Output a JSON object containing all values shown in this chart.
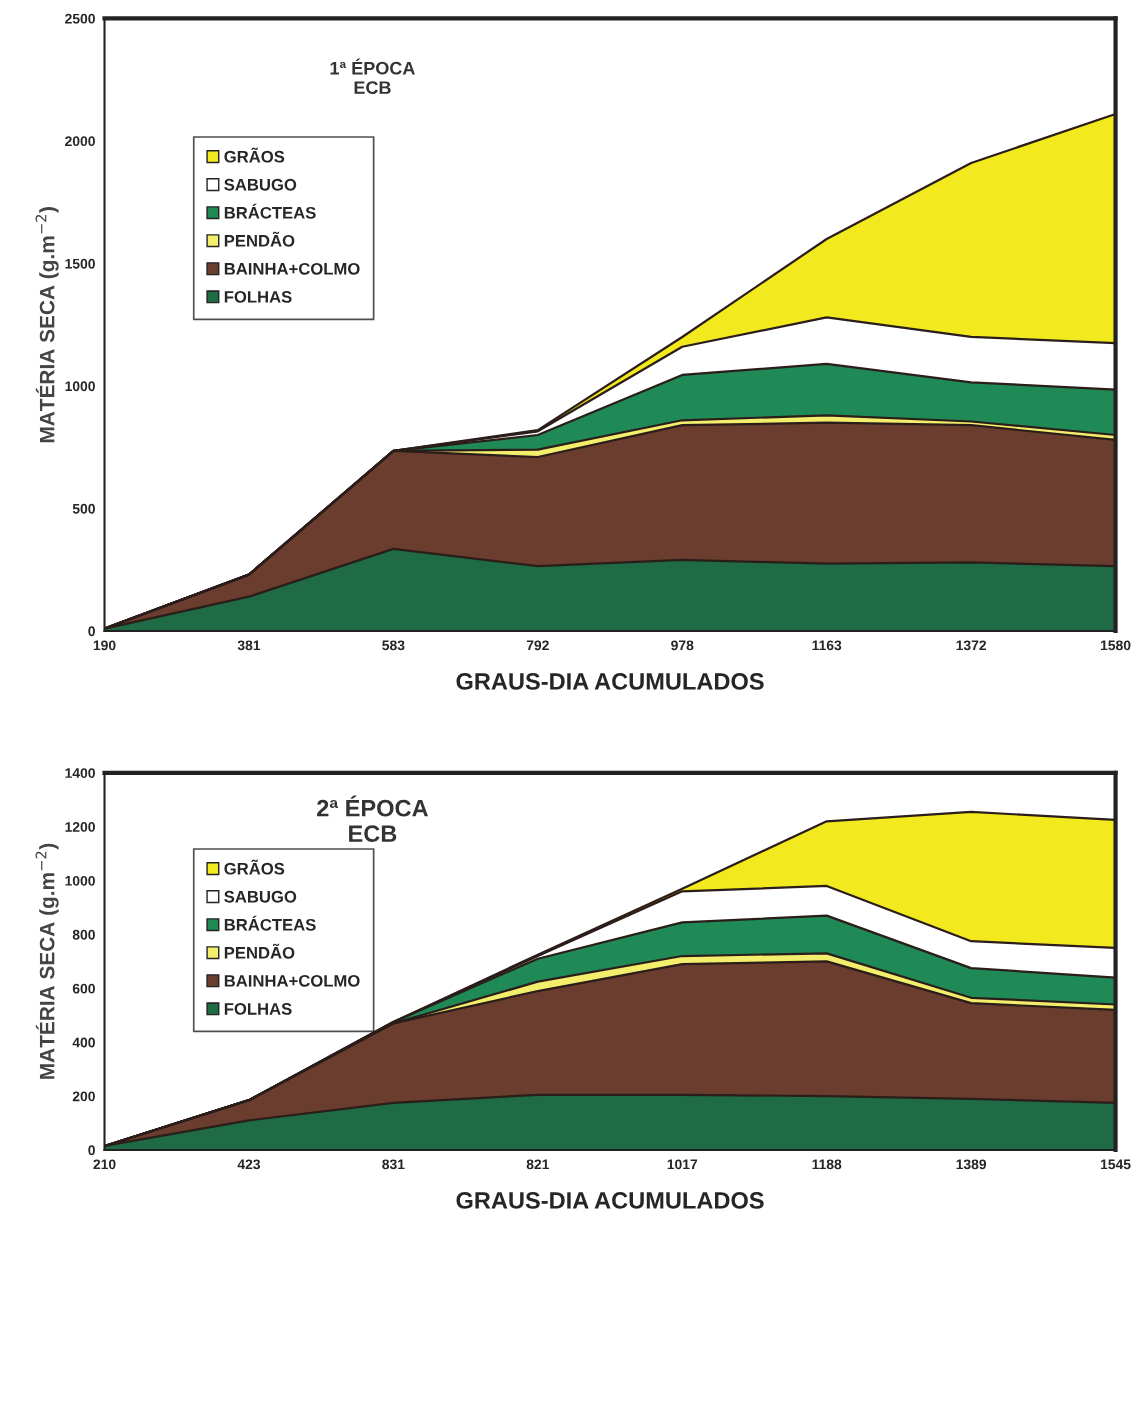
{
  "chart_data": [
    {
      "type": "area",
      "stacked": true,
      "title": "1ª ÉPOCA\nECB",
      "xlabel": "GRAUS-DIA ACUMULADOS",
      "ylabel": "MATÉRIA SECA (g.m$^{−2}$)",
      "categories": [
        "190",
        "381",
        "583",
        "792",
        "978",
        "1163",
        "1372",
        "1580"
      ],
      "ylim": [
        0,
        2500
      ],
      "yticks": [
        0,
        500,
        1000,
        1500,
        2000,
        2500
      ],
      "grid": false,
      "legend": "top left",
      "marker": "none",
      "line_style": "solid",
      "series": [
        {
          "name": "FOLHAS",
          "color": "#1e6b45",
          "values": [
            10,
            140,
            335,
            265,
            290,
            275,
            280,
            265
          ]
        },
        {
          "name": "BAINHA+COLMO",
          "color": "#6b3d2e",
          "values": [
            0,
            90,
            400,
            445,
            550,
            575,
            560,
            515
          ]
        },
        {
          "name": "PENDÃO",
          "color": "#f3ef6c",
          "values": [
            0,
            0,
            0,
            30,
            20,
            30,
            15,
            20
          ]
        },
        {
          "name": "BRÁCTEAS",
          "color": "#1f8a55",
          "values": [
            0,
            0,
            0,
            60,
            185,
            210,
            160,
            185
          ]
        },
        {
          "name": "SABUGO",
          "color": "#ffffff",
          "values": [
            0,
            0,
            0,
            15,
            115,
            190,
            185,
            190
          ]
        },
        {
          "name": "GRÃOS",
          "color": "#f2ea1e",
          "values": [
            0,
            0,
            0,
            5,
            40,
            320,
            710,
            935
          ]
        }
      ]
    },
    {
      "type": "area",
      "stacked": true,
      "title": "2ª ÉPOCA\nECB",
      "xlabel": "GRAUS-DIA ACUMULADOS",
      "ylabel": "MATÉRIA SECA (g.m$^{−2}$)",
      "categories": [
        "210",
        "423",
        "831",
        "821",
        "1017",
        "1188",
        "1389",
        "1545"
      ],
      "ylim": [
        0,
        1400
      ],
      "yticks": [
        0,
        200,
        400,
        600,
        800,
        1000,
        1200,
        1400
      ],
      "grid": false,
      "legend": "top left",
      "marker": "none",
      "line_style": "solid",
      "series": [
        {
          "name": "FOLHAS",
          "color": "#1e6b45",
          "values": [
            15,
            110,
            175,
            205,
            205,
            200,
            190,
            175
          ]
        },
        {
          "name": "BAINHA+COLMO",
          "color": "#6b3d2e",
          "values": [
            0,
            75,
            295,
            385,
            485,
            500,
            355,
            345
          ]
        },
        {
          "name": "PENDÃO",
          "color": "#f3ef6c",
          "values": [
            0,
            0,
            0,
            35,
            30,
            30,
            20,
            20
          ]
        },
        {
          "name": "BRÁCTEAS",
          "color": "#1f8a55",
          "values": [
            0,
            0,
            5,
            85,
            125,
            140,
            110,
            100
          ]
        },
        {
          "name": "SABUGO",
          "color": "#ffffff",
          "values": [
            0,
            0,
            0,
            10,
            115,
            110,
            100,
            110
          ]
        },
        {
          "name": "GRÃOS",
          "color": "#f2ea1e",
          "values": [
            0,
            0,
            0,
            5,
            10,
            240,
            480,
            475
          ]
        }
      ]
    }
  ]
}
